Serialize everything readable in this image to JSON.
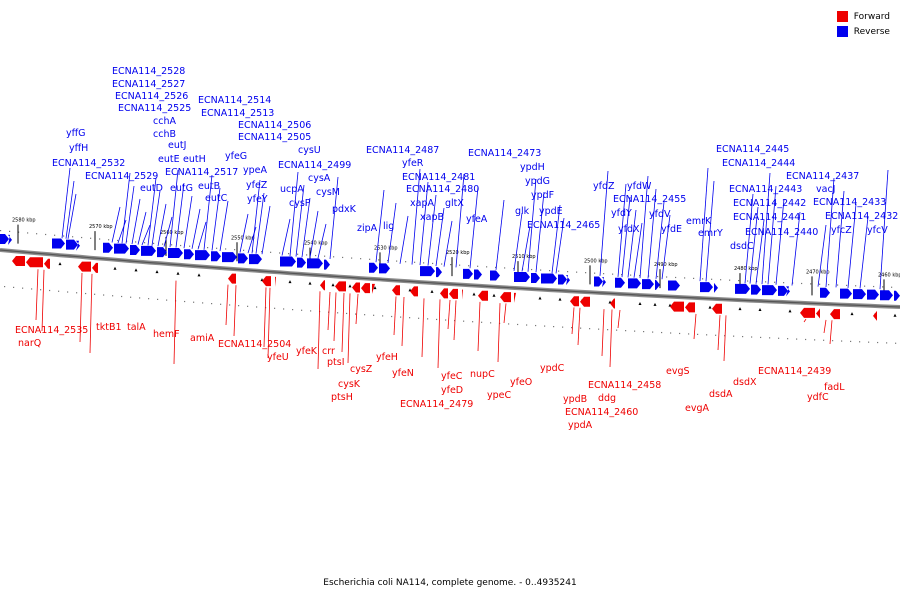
{
  "legend": {
    "forward_label": "Forward",
    "forward_color": "#ee0000",
    "reverse_label": "Reverse",
    "reverse_color": "#0000ee"
  },
  "caption": "Escherichia coli NA114, complete genome. - 0..4935241",
  "ruler": [
    "2580 kbp",
    "2570 kbp",
    "2560 kbp",
    "2550 kbp",
    "2540 kbp",
    "2530 kbp",
    "2520 kbp",
    "2510 kbp",
    "2500 kbp",
    "2490 kbp",
    "2480 kbp",
    "2470 kbp",
    "2460 kbp"
  ],
  "reverse_genes": [
    "yffG",
    "yffH",
    "ECNA114_2532",
    "ECNA114_2528",
    "ECNA114_2527",
    "ECNA114_2526",
    "ECNA114_2525",
    "cchA",
    "cchB",
    "ECNA114_2529",
    "eutD",
    "eutE",
    "eutJ",
    "eutH",
    "eutG",
    "eutB",
    "ECNA114_2517",
    "eutC",
    "yfeG",
    "ECNA114_2514",
    "ECNA114_2513",
    "ypeA",
    "yfeZ",
    "yfeY",
    "ECNA114_2506",
    "ECNA114_2505",
    "cysU",
    "ECNA114_2499",
    "ucpA",
    "cysP",
    "cysA",
    "cysM",
    "pdxK",
    "zipA",
    "lig",
    "ECNA114_2487",
    "yfeR",
    "ECNA114_2481",
    "ECNA114_2480",
    "xapA",
    "xapB",
    "gltX",
    "yfeA",
    "ECNA114_2473",
    "ypdH",
    "ypdG",
    "ypdF",
    "glk",
    "ypdE",
    "ECNA114_2465",
    "yfdZ",
    "yfdW",
    "yfdY",
    "ECNA114_2455",
    "yfdX",
    "yfdV",
    "yfdE",
    "emrK",
    "emrY",
    "ECNA114_2445",
    "ECNA114_2444",
    "ECNA114_2443",
    "dsdC",
    "ECNA114_2442",
    "ECNA114_2441",
    "ECNA114_2440",
    "ECNA114_2437",
    "vacJ",
    "ECNA114_2433",
    "ECNA114_2432",
    "yfcZ",
    "yfcV"
  ],
  "forward_genes": [
    "ECNA114_2535",
    "narQ",
    "tktB1",
    "talA",
    "hemF",
    "amiA",
    "ECNA114_2504",
    "yfeU",
    "yfeK",
    "crr",
    "ptsI",
    "cysK",
    "ptsH",
    "cysZ",
    "yfeH",
    "yfeN",
    "yfeC",
    "yfeD",
    "ECNA114_2479",
    "nupC",
    "ypeC",
    "yfeO",
    "ypdC",
    "ypdB",
    "ECNA114_2460",
    "ypdA",
    "ddg",
    "ECNA114_2458",
    "evgS",
    "evgA",
    "dsdA",
    "dsdX",
    "ECNA114_2439",
    "ydfC",
    "fadL"
  ]
}
